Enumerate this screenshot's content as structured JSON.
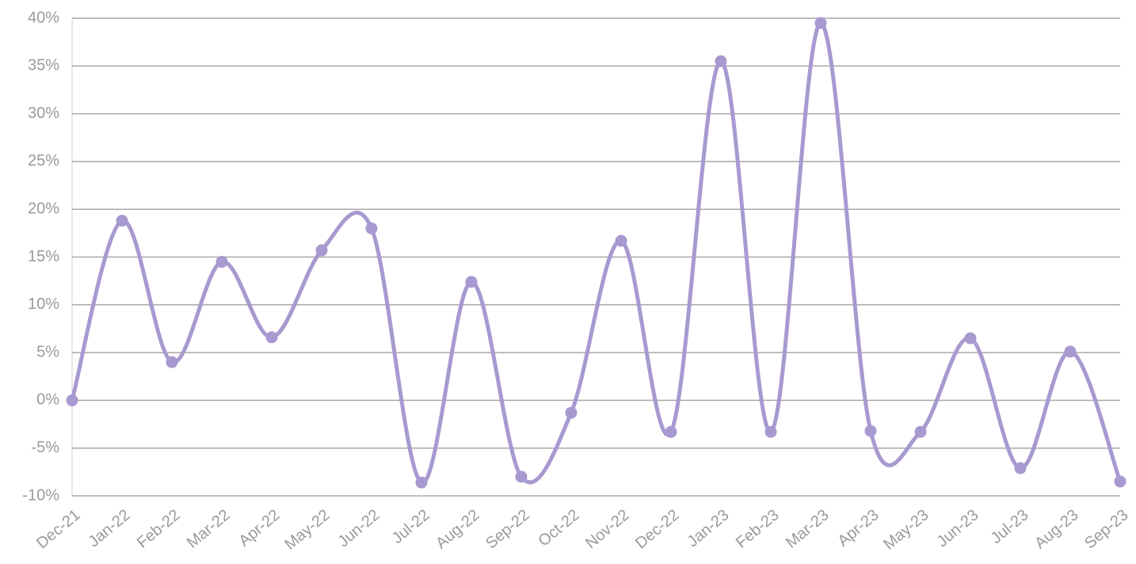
{
  "chart_data": {
    "type": "line",
    "categories": [
      "Dec-21",
      "Jan-22",
      "Feb-22",
      "Mar-22",
      "Apr-22",
      "May-22",
      "Jun-22",
      "Jul-22",
      "Aug-22",
      "Sep-22",
      "Oct-22",
      "Nov-22",
      "Dec-22",
      "Jan-23",
      "Feb-23",
      "Mar-23",
      "Apr-23",
      "May-23",
      "Jun-23",
      "Jul-23",
      "Aug-23",
      "Sep-23"
    ],
    "series": [
      {
        "color": "#a899d0",
        "values": [
          0,
          18.8,
          4.0,
          14.5,
          6.6,
          15.7,
          18.0,
          -8.6,
          12.4,
          -8.0,
          -1.3,
          16.7,
          -3.3,
          35.5,
          -3.3,
          39.5,
          -3.2,
          -3.3,
          6.5,
          -7.1,
          5.1,
          -8.5
        ]
      }
    ],
    "ylim": [
      -10,
      40
    ],
    "yticks": [
      {
        "value": -10,
        "label": "-10%"
      },
      {
        "value": -5,
        "label": "-5%"
      },
      {
        "value": 0,
        "label": "0%"
      },
      {
        "value": 5,
        "label": "5%"
      },
      {
        "value": 10,
        "label": "10%"
      },
      {
        "value": 15,
        "label": "15%"
      },
      {
        "value": 20,
        "label": "20%"
      },
      {
        "value": 25,
        "label": "25%"
      },
      {
        "value": 30,
        "label": "30%"
      },
      {
        "value": 35,
        "label": "35%"
      },
      {
        "value": 40,
        "label": "40%"
      }
    ],
    "grid": true
  }
}
